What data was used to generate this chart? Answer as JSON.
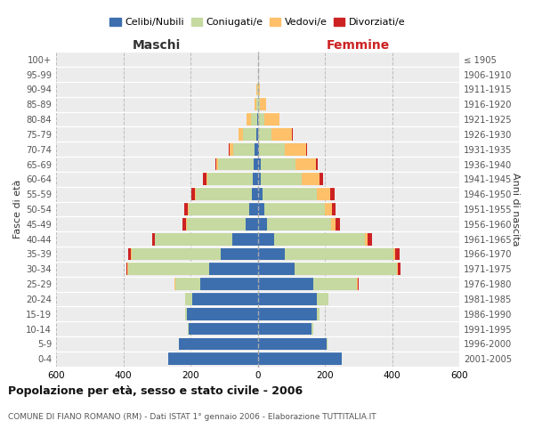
{
  "age_groups": [
    "0-4",
    "5-9",
    "10-14",
    "15-19",
    "20-24",
    "25-29",
    "30-34",
    "35-39",
    "40-44",
    "45-49",
    "50-54",
    "55-59",
    "60-64",
    "65-69",
    "70-74",
    "75-79",
    "80-84",
    "85-89",
    "90-94",
    "95-99",
    "100+"
  ],
  "birth_years": [
    "2001-2005",
    "1996-2000",
    "1991-1995",
    "1986-1990",
    "1981-1985",
    "1976-1980",
    "1971-1975",
    "1966-1970",
    "1961-1965",
    "1956-1960",
    "1951-1955",
    "1946-1950",
    "1941-1945",
    "1936-1940",
    "1931-1935",
    "1926-1930",
    "1921-1925",
    "1916-1920",
    "1911-1915",
    "1906-1910",
    "≤ 1905"
  ],
  "maschi": {
    "celibi": [
      265,
      235,
      205,
      210,
      195,
      170,
      145,
      110,
      75,
      35,
      25,
      18,
      15,
      12,
      8,
      5,
      2,
      0,
      0,
      0,
      0
    ],
    "coniugati": [
      0,
      0,
      2,
      5,
      20,
      75,
      240,
      265,
      230,
      175,
      180,
      165,
      135,
      105,
      65,
      40,
      18,
      5,
      2,
      0,
      0
    ],
    "vedovi": [
      0,
      0,
      0,
      0,
      0,
      2,
      2,
      3,
      2,
      2,
      2,
      3,
      3,
      5,
      10,
      12,
      12,
      5,
      2,
      0,
      0
    ],
    "divorziati": [
      0,
      0,
      0,
      0,
      0,
      2,
      5,
      8,
      8,
      12,
      12,
      12,
      10,
      5,
      2,
      0,
      0,
      0,
      0,
      0,
      0
    ]
  },
  "femmine": {
    "nubili": [
      250,
      205,
      160,
      175,
      175,
      165,
      110,
      80,
      50,
      28,
      20,
      15,
      10,
      8,
      5,
      2,
      2,
      2,
      0,
      0,
      0
    ],
    "coniugate": [
      0,
      2,
      5,
      10,
      35,
      130,
      305,
      325,
      270,
      190,
      180,
      160,
      120,
      105,
      75,
      40,
      18,
      5,
      2,
      0,
      0
    ],
    "vedove": [
      0,
      0,
      0,
      0,
      0,
      2,
      3,
      5,
      8,
      15,
      20,
      40,
      55,
      60,
      65,
      60,
      45,
      18,
      5,
      0,
      0
    ],
    "divorziate": [
      0,
      0,
      0,
      0,
      0,
      3,
      8,
      12,
      12,
      12,
      12,
      15,
      10,
      5,
      2,
      2,
      0,
      0,
      0,
      0,
      0
    ]
  },
  "colors": {
    "celibi": "#3d6faf",
    "coniugati": "#c5d9a0",
    "vedovi": "#ffc06a",
    "divorziati": "#cc2222"
  },
  "title": "Popolazione per età, sesso e stato civile - 2006",
  "subtitle": "COMUNE DI FIANO ROMANO (RM) - Dati ISTAT 1° gennaio 2006 - Elaborazione TUTTITALIA.IT",
  "xlabel_left": "Maschi",
  "xlabel_right": "Femmine",
  "ylabel_left": "Fasce di età",
  "ylabel_right": "Anni di nascita",
  "xlim": 600,
  "background_color": "#ececec",
  "grid_color": "#cccccc"
}
